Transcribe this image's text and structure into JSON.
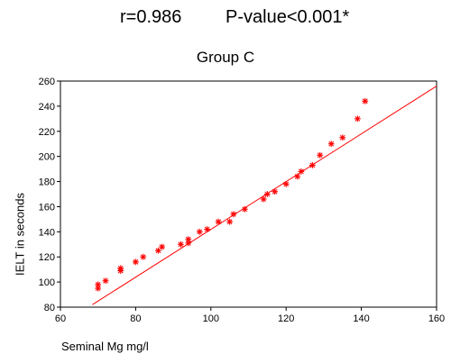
{
  "header": {
    "r_text": "r=0.986",
    "p_text": "P-value<0.001*",
    "subtitle": "Group C"
  },
  "chart_data": {
    "type": "scatter",
    "title": "Group C",
    "xlabel": "Seminal Mg mg/l",
    "ylabel": "IELT in seconds",
    "xlim": [
      60,
      160
    ],
    "ylim": [
      80,
      260
    ],
    "x_ticks": [
      60,
      80,
      100,
      120,
      140,
      160
    ],
    "y_ticks": [
      80,
      100,
      120,
      140,
      160,
      180,
      200,
      220,
      240,
      260
    ],
    "grid": false,
    "marker": "*",
    "color": "#ff0000",
    "series": [
      {
        "points": [
          [
            70,
            98
          ],
          [
            70,
            95
          ],
          [
            72,
            101
          ],
          [
            76,
            109
          ],
          [
            76,
            111
          ],
          [
            80,
            116
          ],
          [
            82,
            120
          ],
          [
            86,
            125
          ],
          [
            87,
            128
          ],
          [
            92,
            130
          ],
          [
            94,
            131
          ],
          [
            94,
            134
          ],
          [
            97,
            140
          ],
          [
            99,
            142
          ],
          [
            102,
            148
          ],
          [
            105,
            148
          ],
          [
            106,
            154
          ],
          [
            109,
            158
          ],
          [
            114,
            166
          ],
          [
            115,
            170
          ],
          [
            117,
            172
          ],
          [
            120,
            178
          ],
          [
            123,
            184
          ],
          [
            124,
            188
          ],
          [
            127,
            193
          ],
          [
            129,
            201
          ],
          [
            132,
            210
          ],
          [
            135,
            215
          ],
          [
            139,
            230
          ],
          [
            141,
            244
          ]
        ]
      }
    ],
    "fit_line": {
      "x": [
        68.5,
        160
      ],
      "y": [
        82,
        256
      ]
    }
  }
}
